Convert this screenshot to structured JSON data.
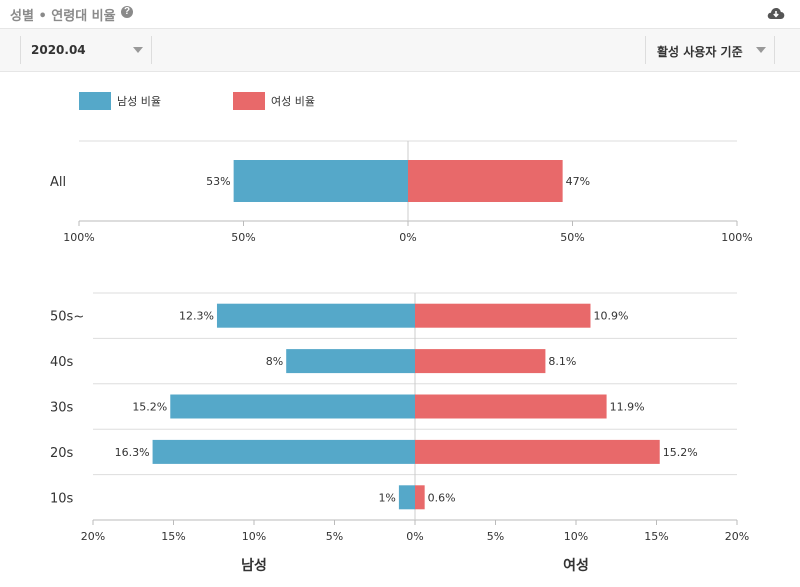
{
  "header": {
    "title": "성별 • 연령대 비율"
  },
  "icons": {
    "help": "help-icon",
    "download": "cloud-download-icon"
  },
  "filters": {
    "period": "2020.04",
    "basis": "활성 사용자 기준"
  },
  "colors": {
    "male": "#55a8c9",
    "female": "#e8696a",
    "grid": "#dddddd",
    "axis": "#cccccc"
  },
  "chart_data": [
    {
      "type": "bar",
      "orientation": "horizontal-diverging",
      "legend": [
        "남성 비율",
        "여성 비율"
      ],
      "legend_position": "top-left",
      "categories": [
        "All"
      ],
      "series": [
        {
          "name": "남성 비율",
          "values": [
            53
          ]
        },
        {
          "name": "여성 비율",
          "values": [
            47
          ]
        }
      ],
      "data_labels": {
        "male": [
          "53%"
        ],
        "female": [
          "47%"
        ]
      },
      "xlim": [
        -100,
        100
      ],
      "xticks": [
        -100,
        -50,
        0,
        50,
        100
      ],
      "xtick_labels": [
        "100%",
        "50%",
        "0%",
        "50%",
        "100%"
      ],
      "grid": true
    },
    {
      "type": "bar",
      "orientation": "horizontal-diverging",
      "categories": [
        "50s~",
        "40s",
        "30s",
        "20s",
        "10s"
      ],
      "series": [
        {
          "name": "남성 비율",
          "values": [
            12.3,
            8,
            15.2,
            16.3,
            1
          ]
        },
        {
          "name": "여성 비율",
          "values": [
            10.9,
            8.1,
            11.9,
            15.2,
            0.6
          ]
        }
      ],
      "data_labels": {
        "male": [
          "12.3%",
          "8%",
          "15.2%",
          "16.3%",
          "1%"
        ],
        "female": [
          "10.9%",
          "8.1%",
          "11.9%",
          "15.2%",
          "0.6%"
        ]
      },
      "xlim": [
        -20,
        20
      ],
      "xticks": [
        -20,
        -15,
        -10,
        -5,
        0,
        5,
        10,
        15,
        20
      ],
      "xtick_labels": [
        "20%",
        "15%",
        "10%",
        "5%",
        "0%",
        "5%",
        "10%",
        "15%",
        "20%"
      ],
      "xlabels": {
        "left": "남성",
        "right": "여성"
      },
      "grid": true
    }
  ]
}
